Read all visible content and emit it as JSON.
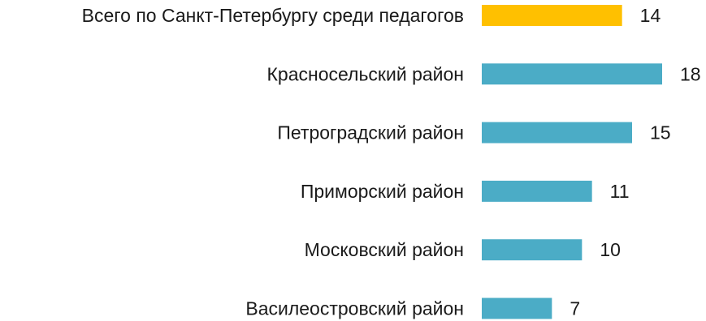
{
  "chart_data": {
    "type": "bar",
    "orientation": "horizontal",
    "categories": [
      "Всего по Санкт-Петербургу среди педагогов",
      "Красносельский район",
      "Петроградский район",
      "Приморский район",
      "Московский район",
      "Василеостровский район"
    ],
    "values": [
      14,
      18,
      15,
      11,
      10,
      7
    ],
    "value_labels": [
      "14",
      "18",
      "15",
      "11",
      "10",
      "7"
    ],
    "bar_colors": [
      "#ffc000",
      "#4bacc6",
      "#4bacc6",
      "#4bacc6",
      "#4bacc6",
      "#4bacc6"
    ],
    "xlim": [
      0,
      18
    ],
    "grid": false,
    "legend": "none"
  }
}
